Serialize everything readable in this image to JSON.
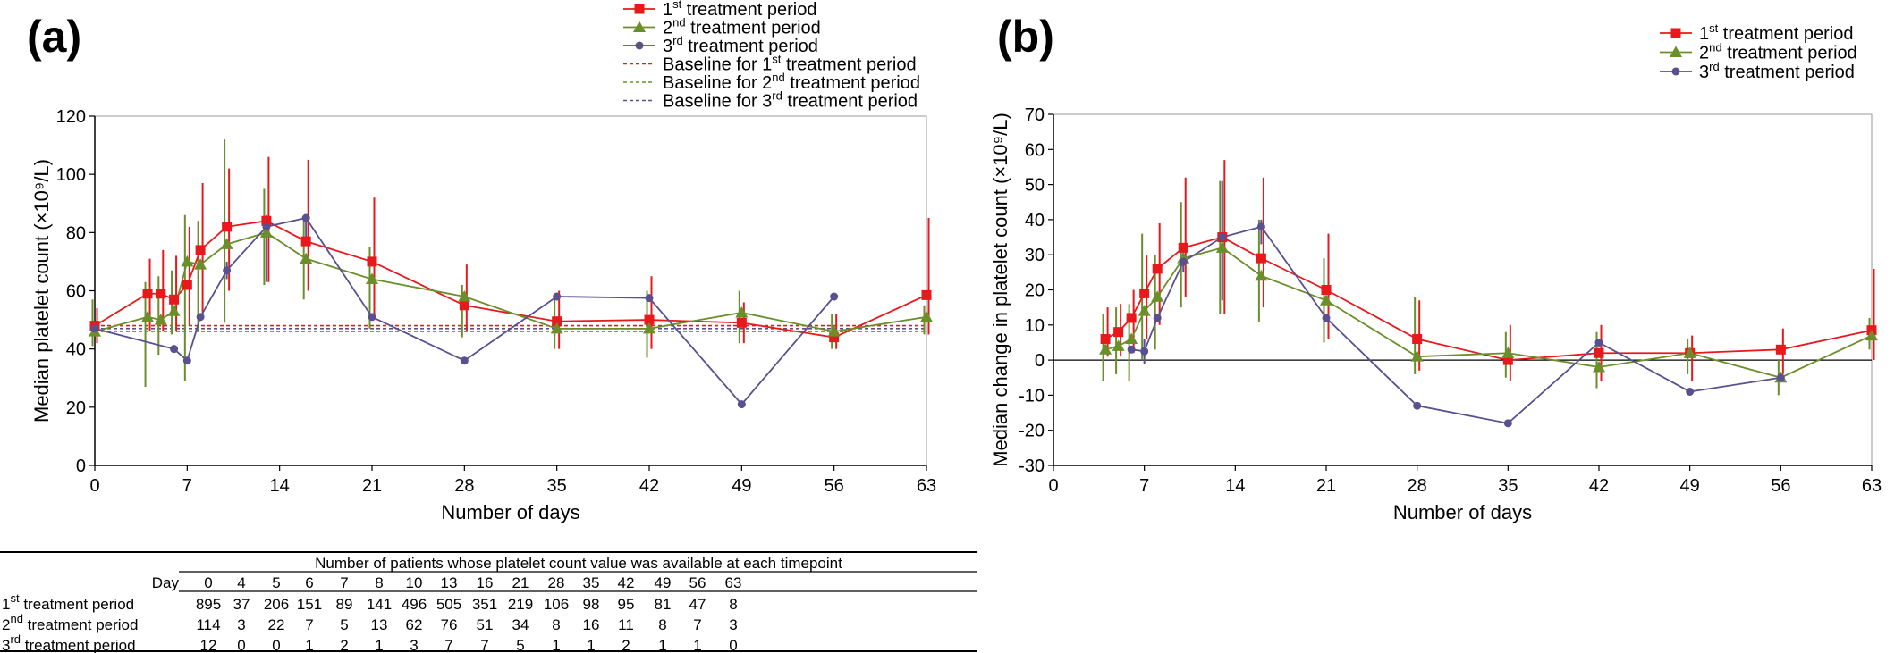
{
  "panels": {
    "a": {
      "letter": "(a)",
      "xlabel": "Number of days",
      "ylabel": "Median platelet count (×10⁹/L)",
      "xlim": [
        0,
        63
      ],
      "ylim": [
        0,
        120
      ],
      "xticks": [
        "0",
        "7",
        "14",
        "21",
        "28",
        "35",
        "42",
        "49",
        "56",
        "63"
      ],
      "yticks": [
        "0",
        "20",
        "40",
        "60",
        "80",
        "100",
        "120"
      ]
    },
    "b": {
      "letter": "(b)",
      "xlabel": "Number of days",
      "ylabel": "Median change in platelet count (×10⁹/L)",
      "xlim": [
        0,
        63
      ],
      "ylim": [
        -30,
        70
      ],
      "xticks": [
        "0",
        "7",
        "14",
        "21",
        "28",
        "35",
        "42",
        "49",
        "56",
        "63"
      ],
      "yticks": [
        "-30",
        "-20",
        "-10",
        "0",
        "10",
        "20",
        "30",
        "40",
        "50",
        "60",
        "70"
      ]
    }
  },
  "legend": {
    "a": [
      {
        "pre": "1",
        "sup": "st",
        "post": " treatment period",
        "style": "series",
        "series": 0
      },
      {
        "pre": "2",
        "sup": "nd",
        "post": " treatment period",
        "style": "series",
        "series": 1
      },
      {
        "pre": "3",
        "sup": "rd",
        "post": " treatment period",
        "style": "series",
        "series": 2
      },
      {
        "pre": "Baseline for 1",
        "sup": "st",
        "post": " treatment period",
        "style": "baseline",
        "series": 0
      },
      {
        "pre": "Baseline for 2",
        "sup": "nd",
        "post": " treatment period",
        "style": "baseline",
        "series": 1
      },
      {
        "pre": "Baseline for 3",
        "sup": "rd",
        "post": " treatment period",
        "style": "baseline",
        "series": 2
      }
    ],
    "b": [
      {
        "pre": "1",
        "sup": "st",
        "post": " treatment period",
        "style": "series",
        "series": 0
      },
      {
        "pre": "2",
        "sup": "nd",
        "post": " treatment period",
        "style": "series",
        "series": 1
      },
      {
        "pre": "3",
        "sup": "rd",
        "post": " treatment period",
        "style": "series",
        "series": 2
      }
    ]
  },
  "series_colors": [
    "#e8191c",
    "#6a8e2a",
    "#5a4f8f"
  ],
  "series_markers": [
    "square",
    "triangle",
    "circle"
  ],
  "chart_data": [
    {
      "type": "line",
      "panel": "a",
      "xlabel": "Number of days",
      "ylabel": "Median platelet count (×10⁹/L)",
      "xlim": [
        0,
        63
      ],
      "ylim": [
        0,
        120
      ],
      "grid": false,
      "legend_position": "top-center",
      "series": [
        {
          "name": "1st treatment period",
          "x": [
            0,
            4,
            5,
            6,
            7,
            8,
            10,
            13,
            16,
            21,
            28,
            35,
            42,
            49,
            56,
            63
          ],
          "y": [
            48,
            59,
            59,
            57,
            62,
            74,
            82,
            84,
            77,
            70,
            55,
            49.5,
            50,
            49,
            44,
            58.5
          ],
          "err_low": [
            42,
            46,
            46,
            46,
            48,
            52,
            60,
            63,
            60,
            50,
            46,
            40,
            40,
            42,
            40,
            45
          ],
          "err_high": [
            54,
            71,
            74,
            72,
            82,
            97,
            102,
            106,
            105,
            92,
            69,
            60,
            65,
            56,
            52,
            85
          ]
        },
        {
          "name": "2nd treatment period",
          "x": [
            0,
            4,
            5,
            6,
            7,
            8,
            10,
            13,
            16,
            21,
            28,
            35,
            42,
            49,
            56,
            63
          ],
          "y": [
            46,
            51,
            50,
            53,
            70,
            69,
            76,
            80,
            71,
            64,
            58,
            47,
            47,
            52.5,
            46,
            51
          ],
          "err_low": [
            41,
            27,
            38,
            45,
            29,
            46,
            49,
            62,
            57,
            47,
            44,
            40,
            37,
            42,
            40,
            45
          ],
          "err_high": [
            57,
            63,
            65,
            67,
            86,
            84,
            112,
            95,
            85,
            75,
            62,
            57,
            60,
            60,
            52,
            55
          ]
        },
        {
          "name": "3rd treatment period",
          "x": [
            0,
            6,
            7,
            8,
            10,
            13,
            16,
            21,
            28,
            35,
            42,
            49,
            56
          ],
          "y": [
            47,
            40,
            36,
            51,
            67,
            82,
            85,
            51,
            36,
            58,
            57.5,
            21,
            58
          ],
          "err_low": [
            47,
            40,
            36,
            51,
            64,
            63,
            77,
            51,
            36,
            58,
            57.5,
            21,
            58
          ],
          "err_high": [
            47,
            40,
            36,
            51,
            70,
            86,
            86,
            51,
            36,
            58,
            57.5,
            21,
            58
          ]
        }
      ],
      "baselines": [
        {
          "name": "Baseline for 1st treatment period",
          "y": 48
        },
        {
          "name": "Baseline for 2nd treatment period",
          "y": 46
        },
        {
          "name": "Baseline for 3rd treatment period",
          "y": 47
        }
      ]
    },
    {
      "type": "line",
      "panel": "b",
      "xlabel": "Number of days",
      "ylabel": "Median change in platelet count (×10⁹/L)",
      "xlim": [
        0,
        63
      ],
      "ylim": [
        -30,
        70
      ],
      "grid": false,
      "legend_position": "top-right",
      "reference_line_y": 0,
      "series": [
        {
          "name": "1st treatment period",
          "x": [
            4,
            5,
            6,
            7,
            8,
            10,
            13,
            16,
            21,
            28,
            35,
            42,
            49,
            56,
            63
          ],
          "y": [
            6,
            8,
            12,
            19,
            26,
            32,
            35,
            29,
            20,
            6,
            0,
            2,
            2,
            3,
            8.5
          ],
          "err_low": [
            1,
            1,
            2,
            6,
            10,
            18,
            13,
            15,
            6,
            -3,
            -6,
            -6,
            -6,
            -4,
            0
          ],
          "err_high": [
            15,
            16,
            20,
            30,
            39,
            52,
            57,
            52,
            36,
            17,
            10,
            10,
            7,
            9,
            26
          ]
        },
        {
          "name": "2nd treatment period",
          "x": [
            4,
            5,
            6,
            7,
            8,
            10,
            13,
            16,
            21,
            28,
            35,
            42,
            49,
            56,
            63
          ],
          "y": [
            3,
            4,
            6,
            14,
            18,
            29,
            32,
            24,
            17,
            1,
            2,
            -2,
            2,
            -5,
            7
          ],
          "err_low": [
            -6,
            -4,
            -6,
            0,
            3,
            15,
            13,
            11,
            5,
            -4,
            -5,
            -8,
            -4,
            -10,
            3
          ],
          "err_high": [
            13,
            15,
            16,
            36,
            30,
            45,
            51,
            40,
            29,
            18,
            8,
            8,
            6,
            0,
            12
          ]
        },
        {
          "name": "3rd treatment period",
          "x": [
            6,
            7,
            8,
            10,
            13,
            16,
            21,
            28,
            35,
            42,
            49,
            56
          ],
          "y": [
            3,
            2.5,
            12,
            28,
            35,
            38,
            12,
            -13,
            -18,
            5,
            -9,
            -5
          ],
          "err_low": [
            3,
            -1,
            12,
            25,
            17,
            33,
            12,
            -13,
            -18,
            5,
            -9,
            -5
          ],
          "err_high": [
            3,
            6,
            12,
            32,
            51,
            40,
            12,
            -13,
            -18,
            5,
            -9,
            -5
          ]
        }
      ]
    },
    {
      "type": "table",
      "title": "Number of patients whose platelet count value was available at each timepoint",
      "header_label": "Day",
      "days": [
        "0",
        "4",
        "5",
        "6",
        "7",
        "8",
        "10",
        "13",
        "16",
        "21",
        "28",
        "35",
        "42",
        "49",
        "56",
        "63"
      ],
      "rows": [
        {
          "label_pre": "1",
          "label_sup": "st",
          "label_post": " treatment period",
          "values": [
            "895",
            "37",
            "206",
            "151",
            "89",
            "141",
            "496",
            "505",
            "351",
            "219",
            "106",
            "98",
            "95",
            "81",
            "47",
            "8"
          ]
        },
        {
          "label_pre": "2",
          "label_sup": "nd",
          "label_post": " treatment period",
          "values": [
            "114",
            "3",
            "22",
            "7",
            "5",
            "13",
            "62",
            "76",
            "51",
            "34",
            "8",
            "16",
            "11",
            "8",
            "7",
            "3"
          ]
        },
        {
          "label_pre": "3",
          "label_sup": "rd",
          "label_post": " treatment period",
          "values": [
            "12",
            "0",
            "0",
            "1",
            "2",
            "1",
            "3",
            "7",
            "7",
            "5",
            "1",
            "1",
            "2",
            "1",
            "1",
            "0"
          ]
        }
      ]
    }
  ]
}
